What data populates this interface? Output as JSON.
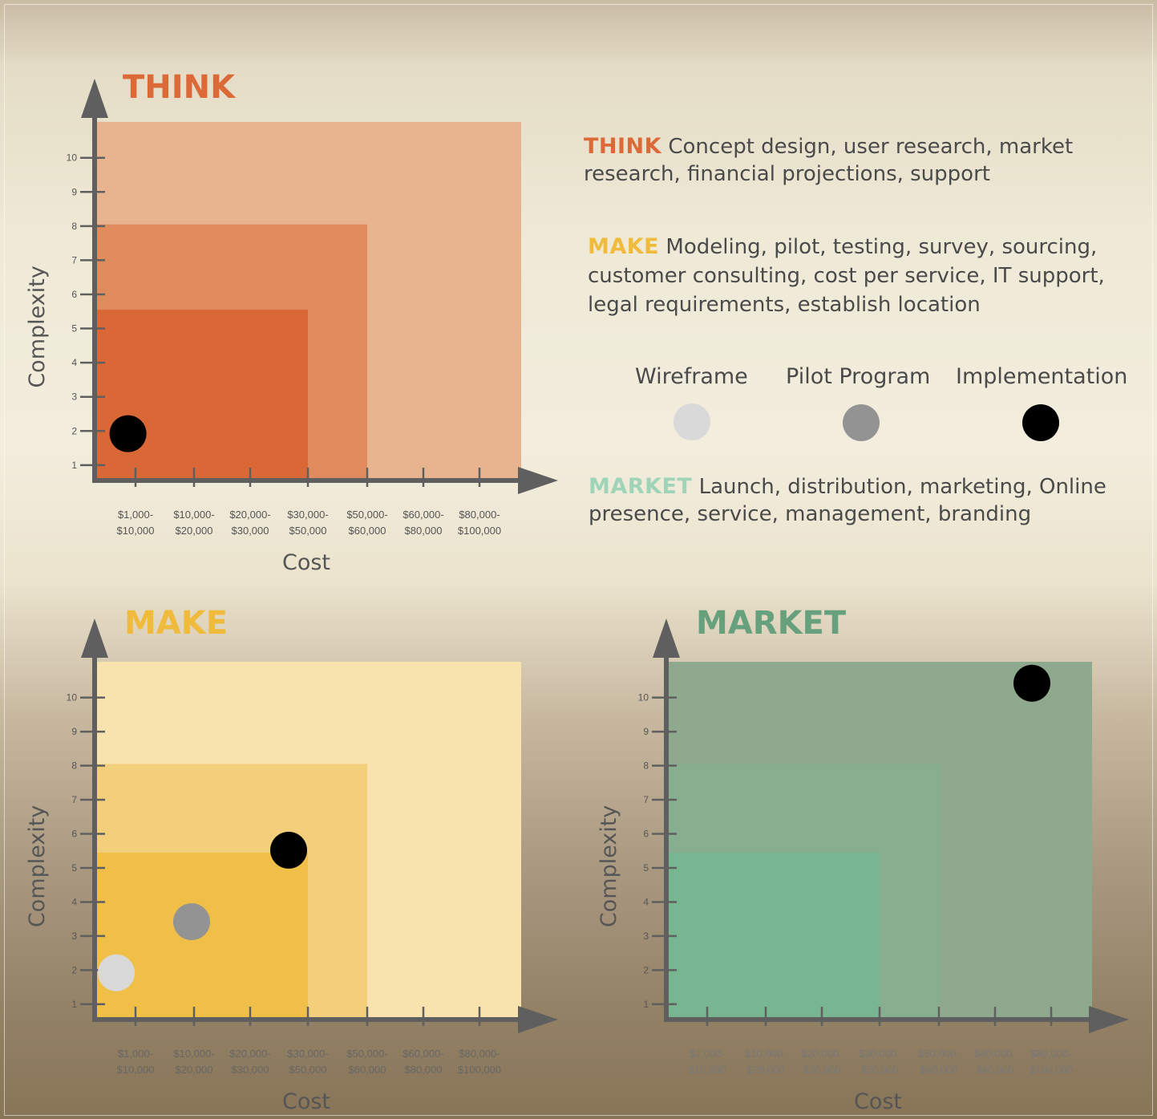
{
  "colors": {
    "think": "#dc6a38",
    "make": "#f0be4a",
    "market": "#6aa98a",
    "axis": "#5f5f5f",
    "wireframe": "#d9d9d9",
    "pilot": "#939393",
    "implementation": "#000000"
  },
  "descriptions": {
    "think": {
      "keyword": "THINK",
      "text": "Concept design, user research, market research, financial projections, support"
    },
    "make": {
      "keyword": "MAKE",
      "text": "Modeling, pilot, testing, survey, sourcing, customer consulting, cost per service, IT support, legal requirements, establish location"
    },
    "market": {
      "keyword": "MARKET",
      "text": "Launch, distribution, marketing, Online presence, service, management, branding"
    }
  },
  "legend": [
    {
      "label": "Wireframe",
      "color": "#d9d9d9"
    },
    {
      "label": "Pilot Program",
      "color": "#939393"
    },
    {
      "label": "Implementation",
      "color": "#000000"
    }
  ],
  "chart_data": [
    {
      "type": "scatter",
      "title": "THINK",
      "xlabel": "Cost",
      "ylabel": "Complexity",
      "x_categories": [
        "$1,000-\n$10,000",
        "$10,000-\n$20,000",
        "$20,000-\n$30,000",
        "$30,000-\n$50,000",
        "$50,000-\n$60,000",
        "$60,000-\n$80,000",
        "$80,000-\n$100,000"
      ],
      "y_ticks": [
        1,
        2,
        3,
        4,
        5,
        6,
        7,
        8,
        9,
        10
      ],
      "ylim": [
        0,
        10.5
      ],
      "regions": [
        {
          "x_max": "$80,000-$100,000",
          "y_max": 10.5,
          "color": "#e8b48f"
        },
        {
          "x_max": "$50,000-$60,000",
          "y_max": 7.5,
          "color": "#e08b5e"
        },
        {
          "x_max": "$30,000-$50,000",
          "y_max": 5.0,
          "color": "#da6836"
        }
      ],
      "points": [
        {
          "stage": "Implementation",
          "x_index": 0.2,
          "y": 0.9
        }
      ]
    },
    {
      "type": "scatter",
      "title": "MAKE",
      "xlabel": "Cost",
      "ylabel": "Complexity",
      "x_categories": [
        "$1,000-\n$10,000",
        "$10,000-\n$20,000",
        "$20,000-\n$30,000",
        "$30,000-\n$50,000",
        "$50,000-\n$60,000",
        "$60,000-\n$80,000",
        "$80,000-\n$100,000"
      ],
      "y_ticks": [
        1,
        2,
        3,
        4,
        5,
        6,
        7,
        8,
        9,
        10
      ],
      "ylim": [
        0,
        10.5
      ],
      "regions": [
        {
          "x_max": "$80,000-$100,000",
          "y_max": 10.5,
          "color": "#f8e2ae"
        },
        {
          "x_max": "$50,000-$60,000",
          "y_max": 7.5,
          "color": "#f3cf7c"
        },
        {
          "x_max": "$30,000-$50,000",
          "y_max": 4.9,
          "color": "#efbf48"
        }
      ],
      "points": [
        {
          "stage": "Wireframe",
          "x_index": 0.0,
          "y": 0.9
        },
        {
          "stage": "Pilot Program",
          "x_index": 1.3,
          "y": 2.4
        },
        {
          "stage": "Implementation",
          "x_index": 3.0,
          "y": 4.5
        }
      ]
    },
    {
      "type": "scatter",
      "title": "MARKET",
      "xlabel": "Cost",
      "ylabel": "Complexity",
      "x_categories": [
        "$1,000-\n$10,000",
        "$10,000-\n$20,000",
        "$20,000-\n$30,000",
        "$30,000-\n$50,000",
        "$50,000-\n$60,000",
        "$60,000-\n$80,000",
        "$80,000-\n$100,000"
      ],
      "y_ticks": [
        1,
        2,
        3,
        4,
        5,
        6,
        7,
        8,
        9,
        10
      ],
      "ylim": [
        0,
        10.5
      ],
      "regions": [
        {
          "x_max": "$80,000-$100,000",
          "y_max": 10.5,
          "color": "#8ea98d"
        },
        {
          "x_max": "$50,000-$60,000",
          "y_max": 7.5,
          "color": "#86ae8f"
        },
        {
          "x_max": "$30,000-$50,000",
          "y_max": 4.9,
          "color": "#77b690"
        }
      ],
      "points": [
        {
          "stage": "Implementation",
          "x_index": 6.6,
          "y": 9.4
        }
      ]
    }
  ]
}
